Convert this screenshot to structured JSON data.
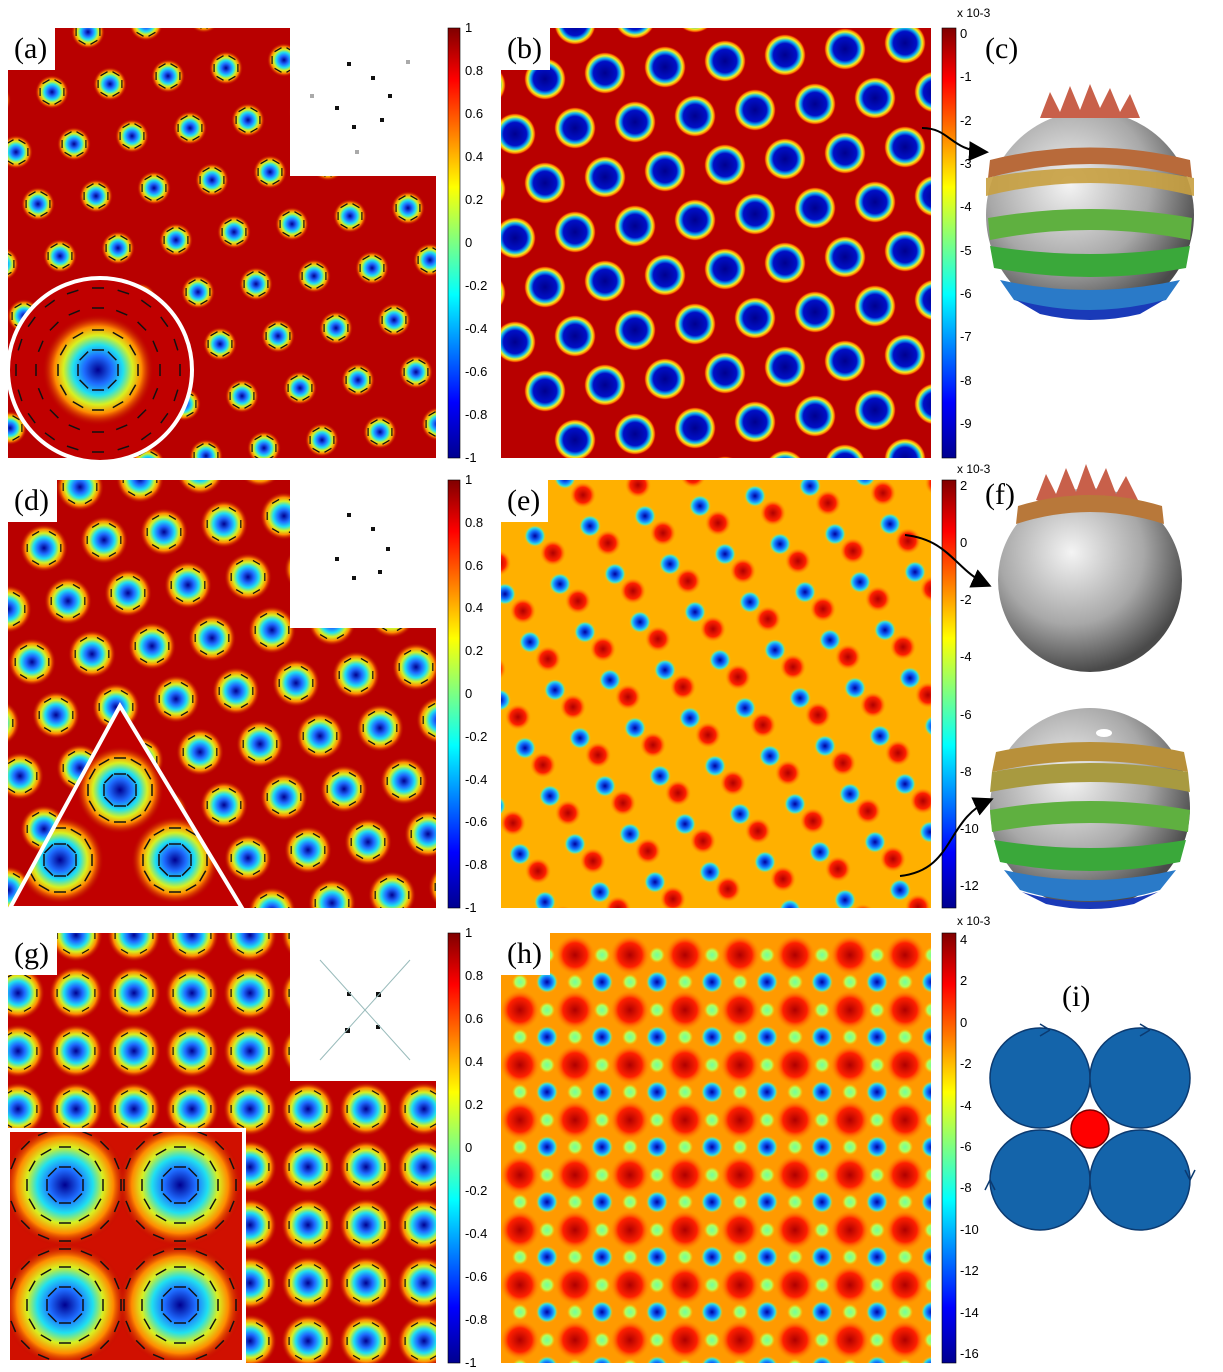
{
  "panels": {
    "a": "(a)",
    "b": "(b)",
    "c": "(c)",
    "d": "(d)",
    "e": "(e)",
    "f": "(f)",
    "g": "(g)",
    "h": "(h)",
    "i": "(i)"
  },
  "colorbars": {
    "magnetization_ticks": [
      "1",
      "0.8",
      "0.6",
      "0.4",
      "0.2",
      "0",
      "-0.2",
      "-0.4",
      "-0.6",
      "-0.8",
      "-1"
    ],
    "b_ticks": [
      "0",
      "-1",
      "-2",
      "-3",
      "-4",
      "-5",
      "-6",
      "-7",
      "-8",
      "-9"
    ],
    "e_ticks": [
      "2",
      "0",
      "-2",
      "-4",
      "-6",
      "-8",
      "-10",
      "-12"
    ],
    "h_ticks": [
      "4",
      "2",
      "0",
      "-2",
      "-4",
      "-6",
      "-8",
      "-10",
      "-12",
      "-14",
      "-16"
    ],
    "scale_note": "x 10-3"
  },
  "colors": {
    "high": "#b20000",
    "mid": "#e8d200",
    "cyan": "#00c8e8",
    "low": "#00008f",
    "disc_blue": "#1464aa",
    "disc_red": "#ff0000"
  }
}
